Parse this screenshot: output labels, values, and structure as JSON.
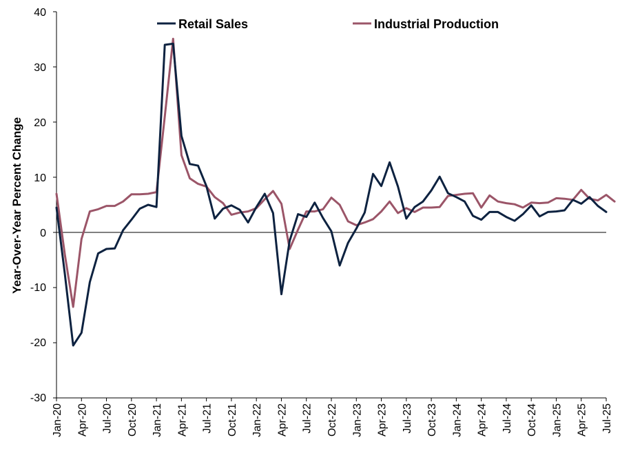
{
  "chart_data": {
    "type": "line",
    "title": "",
    "xlabel": "",
    "ylabel": "Year-Over-Year Percent Change",
    "ylim": [
      -30,
      40
    ],
    "yticks": [
      "40",
      "30",
      "20",
      "10",
      "0",
      "-10",
      "-20",
      "-30"
    ],
    "xtick_labels": [
      "Jan-20",
      "Apr-20",
      "Jul-20",
      "Oct-20",
      "Jan-21",
      "Apr-21",
      "Jul-21",
      "Oct-21",
      "Jan-22",
      "Apr-22",
      "Jul-22",
      "Oct-22",
      "Jan-23",
      "Apr-23",
      "Jul-23",
      "Oct-23",
      "Jan-24",
      "Apr-24",
      "Jul-24",
      "Oct-24",
      "Jan-25",
      "Apr-25",
      "Jul-25"
    ],
    "x_start": "Jan-20",
    "x_end": "Sep-25",
    "grid": false,
    "legend_position": "top",
    "series": [
      {
        "name": "Retail Sales",
        "color": "#0d2240",
        "values": [
          4.5,
          -7.5,
          -20.5,
          -18.2,
          -9.0,
          -3.8,
          -3.0,
          -2.9,
          0.4,
          2.3,
          4.3,
          5.0,
          4.6,
          34.0,
          34.2,
          17.5,
          12.4,
          12.1,
          8.4,
          2.5,
          4.3,
          4.9,
          4.1,
          1.8,
          4.6,
          7.0,
          3.5,
          -11.2,
          -1.5,
          3.3,
          2.8,
          5.4,
          2.6,
          0.2,
          -6.0,
          -1.9,
          0.7,
          3.6,
          10.6,
          8.4,
          12.7,
          8.3,
          2.5,
          4.6,
          5.6,
          7.6,
          10.1,
          7.1,
          6.4,
          5.6,
          3.0,
          2.3,
          3.7,
          3.7,
          2.8,
          2.1,
          3.3,
          4.9,
          2.9,
          3.7,
          3.8,
          4.0,
          5.9,
          5.2,
          6.4,
          4.8,
          3.7
        ]
      },
      {
        "name": "Industrial Production",
        "color": "#9b5568",
        "values": [
          7.0,
          -4.0,
          -13.5,
          -1.2,
          3.8,
          4.2,
          4.8,
          4.8,
          5.6,
          6.9,
          6.9,
          7.0,
          7.3,
          21.0,
          35.1,
          14.0,
          9.8,
          8.8,
          8.3,
          6.4,
          5.3,
          3.2,
          3.6,
          3.8,
          4.4,
          6.0,
          7.5,
          5.2,
          -3.0,
          0.5,
          3.8,
          3.8,
          4.2,
          6.3,
          5.0,
          2.0,
          1.3,
          1.8,
          2.4,
          3.8,
          5.6,
          3.5,
          4.4,
          3.7,
          4.5,
          4.5,
          4.6,
          6.6,
          6.8,
          7.0,
          7.1,
          4.5,
          6.7,
          5.6,
          5.3,
          5.1,
          4.5,
          5.4,
          5.3,
          5.4,
          6.2,
          6.1,
          5.9,
          7.7,
          6.1,
          5.8,
          6.8,
          5.6
        ]
      }
    ]
  }
}
